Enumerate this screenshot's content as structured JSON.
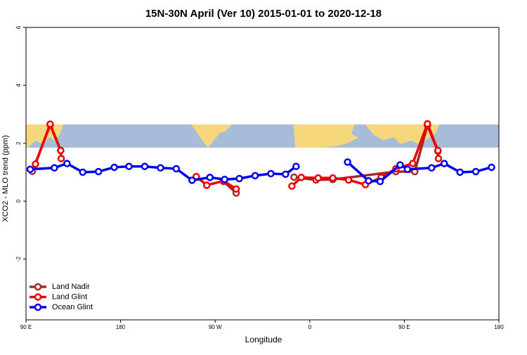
{
  "chart_data": {
    "type": "line",
    "title": "15N-30N April (Ver 10)   2015-01-01 to 2020-12-18",
    "x_label": "Longitude",
    "y_label": "XCO2 - MLO trend (ppm)",
    "xlim": [
      90,
      540
    ],
    "xticks": [
      {
        "value": 90,
        "label": "90 E"
      },
      180,
      {
        "value": 270,
        "label": "90 W"
      },
      {
        "value": 360,
        "label": "0"
      },
      {
        "value": 450,
        "label": "90 E"
      },
      {
        "value": 540,
        "label": "180"
      }
    ],
    "ylim": [
      -4.1,
      6
    ],
    "yticks": [
      -2,
      0,
      2,
      4,
      6
    ],
    "legend": "bottom-left",
    "series": [
      {
        "name": "Land Nadir",
        "color": "#a52a2a",
        "x": [
          96,
          113,
          123,
          null,
          278,
          290,
          null,
          345,
          366,
          382,
          442,
          460,
          472,
          482
        ],
        "values": [
          1.03,
          2.63,
          1.75,
          null,
          0.68,
          0.28,
          null,
          0.83,
          0.73,
          0.75,
          1.02,
          1.02,
          2.62,
          1.72
        ]
      },
      {
        "name": "Land Glint",
        "color": "#ee0000",
        "x": [
          99,
          113,
          123,
          123.5,
          null,
          252,
          262,
          278,
          290,
          null,
          343,
          352,
          368,
          382,
          397,
          413,
          428,
          442,
          458,
          472,
          482,
          482.5
        ],
        "values": [
          1.28,
          2.66,
          1.75,
          1.47,
          null,
          0.85,
          0.55,
          0.7,
          0.42,
          null,
          0.52,
          0.82,
          0.8,
          0.8,
          0.73,
          0.57,
          0.82,
          1.12,
          1.3,
          2.67,
          1.75,
          1.47
        ]
      },
      {
        "name": "Ocean Glint",
        "color": "#0000ee",
        "x": [
          94,
          117,
          129,
          144,
          159,
          174,
          188,
          203,
          218,
          233,
          248,
          265,
          279,
          293,
          308,
          323,
          337,
          347,
          null,
          396,
          416,
          427,
          446,
          453,
          476,
          488,
          503,
          518,
          533
        ],
        "values": [
          1.1,
          1.15,
          1.3,
          1.0,
          1.02,
          1.17,
          1.2,
          1.2,
          1.15,
          1.12,
          0.72,
          0.82,
          0.75,
          0.78,
          0.88,
          0.95,
          0.93,
          1.2,
          null,
          1.35,
          0.7,
          0.68,
          1.25,
          1.1,
          1.15,
          1.3,
          1.0,
          1.02,
          1.17
        ]
      }
    ]
  }
}
